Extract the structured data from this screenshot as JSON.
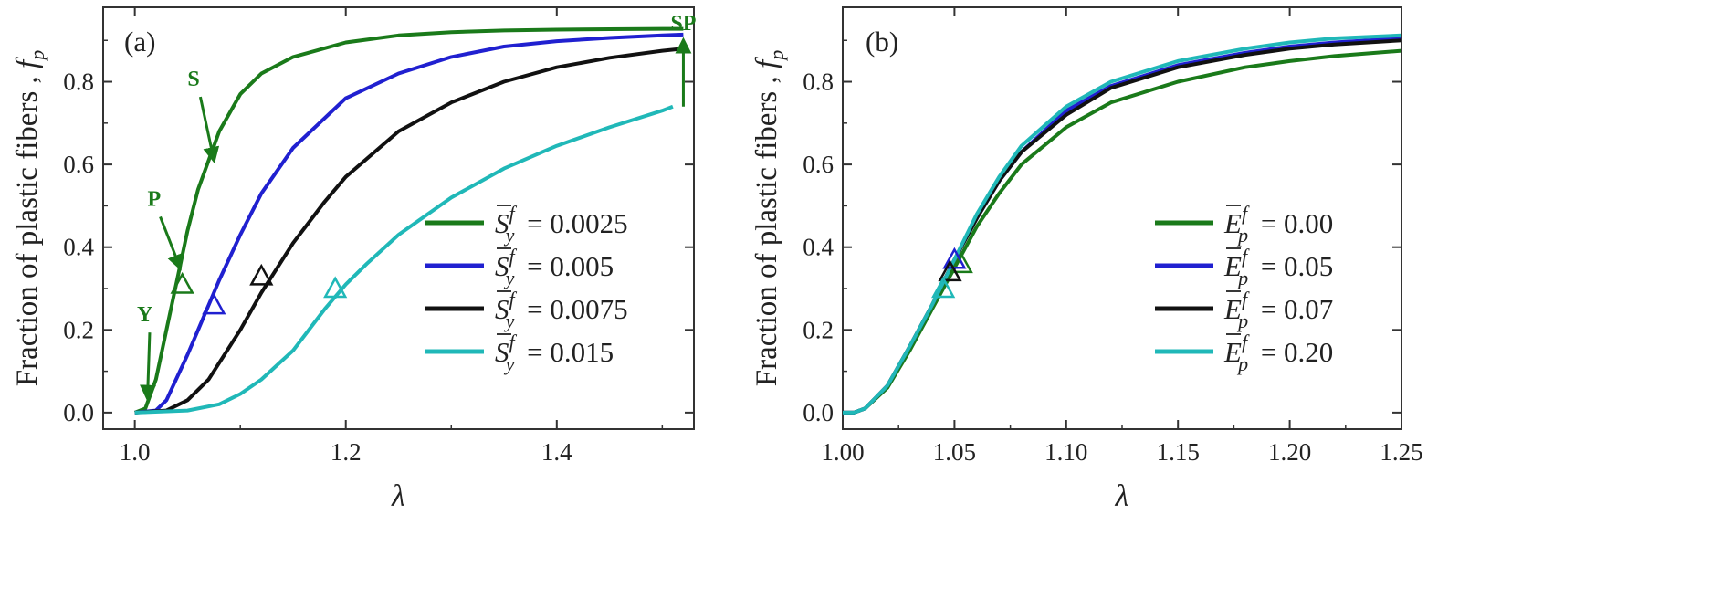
{
  "chart_data": [
    {
      "type": "line",
      "panel_label": "(a)",
      "xlabel": "λ",
      "ylabel": "Fraction of plastic fibers , f",
      "ylabel_sub": "p",
      "xlim": [
        0.97,
        1.53
      ],
      "ylim": [
        -0.04,
        0.98
      ],
      "x_ticks": [
        1.0,
        1.2,
        1.4
      ],
      "x_tick_labels": [
        "1.0",
        "1.2",
        "1.4"
      ],
      "y_ticks": [
        0.0,
        0.2,
        0.4,
        0.6,
        0.8
      ],
      "y_tick_labels": [
        "0.0",
        "0.2",
        "0.4",
        "0.6",
        "0.8"
      ],
      "legend_position": "lower-right",
      "legend_symbol": "S",
      "legend_sub": "y",
      "legend_sup": "f",
      "series": [
        {
          "legend_value": "= 0.0025",
          "color": "#1a7a1a",
          "x": [
            1.0,
            1.01,
            1.02,
            1.03,
            1.04,
            1.05,
            1.06,
            1.08,
            1.1,
            1.12,
            1.15,
            1.2,
            1.25,
            1.3,
            1.35,
            1.4,
            1.45,
            1.5,
            1.52
          ],
          "y": [
            0.0,
            0.01,
            0.08,
            0.2,
            0.32,
            0.44,
            0.54,
            0.68,
            0.77,
            0.82,
            0.86,
            0.895,
            0.912,
            0.92,
            0.924,
            0.926,
            0.927,
            0.928,
            0.928
          ],
          "marker": {
            "x": 1.045,
            "y": 0.31
          }
        },
        {
          "legend_value": "= 0.005",
          "color": "#2020d0",
          "x": [
            1.0,
            1.02,
            1.03,
            1.05,
            1.06,
            1.08,
            1.1,
            1.12,
            1.15,
            1.2,
            1.25,
            1.3,
            1.35,
            1.4,
            1.45,
            1.5,
            1.52
          ],
          "y": [
            0.0,
            0.005,
            0.03,
            0.14,
            0.2,
            0.32,
            0.43,
            0.53,
            0.64,
            0.76,
            0.82,
            0.86,
            0.885,
            0.898,
            0.906,
            0.912,
            0.914
          ],
          "marker": {
            "x": 1.075,
            "y": 0.26
          }
        },
        {
          "legend_value": "= 0.0075",
          "color": "#111111",
          "x": [
            1.0,
            1.03,
            1.05,
            1.07,
            1.1,
            1.12,
            1.15,
            1.18,
            1.2,
            1.25,
            1.3,
            1.35,
            1.4,
            1.45,
            1.5,
            1.52
          ],
          "y": [
            0.0,
            0.005,
            0.03,
            0.08,
            0.2,
            0.29,
            0.41,
            0.51,
            0.57,
            0.68,
            0.75,
            0.8,
            0.835,
            0.858,
            0.875,
            0.88
          ],
          "marker": {
            "x": 1.12,
            "y": 0.33
          }
        },
        {
          "legend_value": "= 0.015",
          "color": "#20b8b8",
          "x": [
            1.0,
            1.05,
            1.08,
            1.1,
            1.12,
            1.15,
            1.18,
            1.2,
            1.22,
            1.25,
            1.3,
            1.35,
            1.4,
            1.45,
            1.5,
            1.51
          ],
          "y": [
            0.0,
            0.005,
            0.02,
            0.045,
            0.08,
            0.15,
            0.25,
            0.31,
            0.36,
            0.43,
            0.52,
            0.59,
            0.645,
            0.69,
            0.73,
            0.74
          ],
          "marker": {
            "x": 1.19,
            "y": 0.3
          }
        }
      ],
      "annotations": [
        {
          "text": "Y",
          "color": "#1a7a1a",
          "text_xy": [
            1.002,
            0.22
          ],
          "arrow_to": [
            1.012,
            0.035
          ]
        },
        {
          "text": "P",
          "color": "#1a7a1a",
          "text_xy": [
            1.012,
            0.5
          ],
          "arrow_to": [
            1.043,
            0.35
          ]
        },
        {
          "text": "S",
          "color": "#1a7a1a",
          "text_xy": [
            1.05,
            0.79
          ],
          "arrow_to": [
            1.075,
            0.61
          ]
        },
        {
          "text": "SP",
          "color": "#1a7a1a",
          "text_xy": [
            1.52,
            0.925
          ],
          "arrow_from": [
            1.52,
            0.74
          ],
          "arrow_to": [
            1.52,
            0.9
          ]
        }
      ]
    },
    {
      "type": "line",
      "panel_label": "(b)",
      "xlabel": "λ",
      "ylabel": "Fraction of plastic fibers , f",
      "ylabel_sub": "p",
      "xlim": [
        1.0,
        1.25
      ],
      "ylim": [
        -0.04,
        0.98
      ],
      "x_ticks": [
        1.0,
        1.05,
        1.1,
        1.15,
        1.2,
        1.25
      ],
      "x_tick_labels": [
        "1.00",
        "1.05",
        "1.10",
        "1.15",
        "1.20",
        "1.25"
      ],
      "y_ticks": [
        0.0,
        0.2,
        0.4,
        0.6,
        0.8
      ],
      "y_tick_labels": [
        "0.0",
        "0.2",
        "0.4",
        "0.6",
        "0.8"
      ],
      "legend_position": "lower-right",
      "legend_symbol": "E",
      "legend_sub": "p",
      "legend_sup": "f",
      "series": [
        {
          "legend_value": "=  0.00",
          "color": "#1a7a1a",
          "x": [
            1.0,
            1.005,
            1.01,
            1.02,
            1.03,
            1.04,
            1.05,
            1.06,
            1.07,
            1.08,
            1.1,
            1.12,
            1.15,
            1.18,
            1.2,
            1.22,
            1.25
          ],
          "y": [
            0.0,
            0.0,
            0.01,
            0.06,
            0.15,
            0.25,
            0.35,
            0.45,
            0.53,
            0.6,
            0.69,
            0.75,
            0.8,
            0.835,
            0.85,
            0.862,
            0.875
          ],
          "marker": {
            "x": 1.053,
            "y": 0.36
          }
        },
        {
          "legend_value": "=  0.05",
          "color": "#2020d0",
          "x": [
            1.0,
            1.005,
            1.01,
            1.02,
            1.03,
            1.04,
            1.05,
            1.06,
            1.07,
            1.08,
            1.1,
            1.12,
            1.15,
            1.18,
            1.2,
            1.22,
            1.25
          ],
          "y": [
            0.0,
            0.0,
            0.01,
            0.065,
            0.16,
            0.26,
            0.37,
            0.47,
            0.56,
            0.63,
            0.73,
            0.79,
            0.84,
            0.87,
            0.885,
            0.895,
            0.905
          ],
          "marker": {
            "x": 1.05,
            "y": 0.37
          }
        },
        {
          "legend_value": "=  0.07",
          "color": "#111111",
          "x": [
            1.0,
            1.005,
            1.01,
            1.02,
            1.03,
            1.04,
            1.05,
            1.06,
            1.07,
            1.08,
            1.1,
            1.12,
            1.15,
            1.18,
            1.2,
            1.22,
            1.25
          ],
          "y": [
            0.0,
            0.0,
            0.01,
            0.065,
            0.16,
            0.26,
            0.37,
            0.47,
            0.56,
            0.63,
            0.72,
            0.785,
            0.835,
            0.865,
            0.88,
            0.89,
            0.9
          ],
          "marker": {
            "x": 1.048,
            "y": 0.34
          }
        },
        {
          "legend_value": "=  0.20",
          "color": "#20b8b8",
          "x": [
            1.0,
            1.005,
            1.01,
            1.02,
            1.03,
            1.04,
            1.05,
            1.06,
            1.07,
            1.08,
            1.1,
            1.12,
            1.15,
            1.18,
            1.2,
            1.22,
            1.25
          ],
          "y": [
            0.0,
            0.0,
            0.01,
            0.065,
            0.16,
            0.26,
            0.37,
            0.48,
            0.57,
            0.645,
            0.74,
            0.8,
            0.85,
            0.88,
            0.895,
            0.905,
            0.912
          ],
          "marker": {
            "x": 1.045,
            "y": 0.3
          }
        }
      ]
    }
  ]
}
